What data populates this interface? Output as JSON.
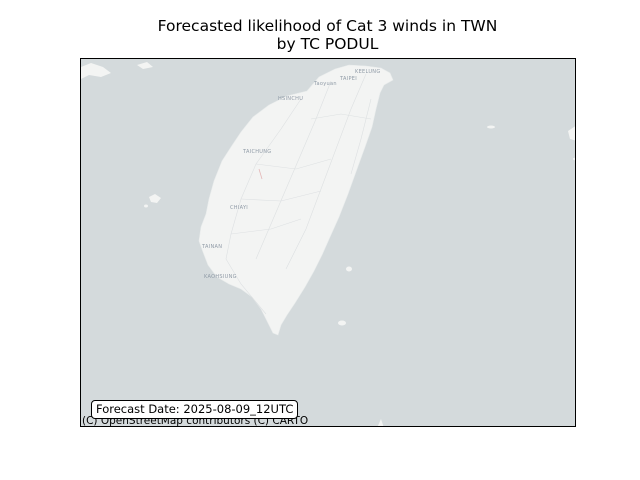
{
  "title_line1": "Forecasted likelihood of Cat 3 winds in TWN",
  "title_line2": "by TC PODUL",
  "map": {
    "sea_color": "#d4dadc",
    "land_color": "#f3f4f3",
    "road_color": "#dde0e2",
    "city_labels": [
      "KEELUNG",
      "TAIPEI",
      "Taoyuan",
      "HSINCHU",
      "TAICHUNG",
      "CHIAYI",
      "TAINAN",
      "KAOHSIUNG"
    ]
  },
  "forecast_label": "Forecast Date: 2025-08-09_12UTC",
  "attribution": "(C) OpenStreetMap contributors (C) CARTO"
}
